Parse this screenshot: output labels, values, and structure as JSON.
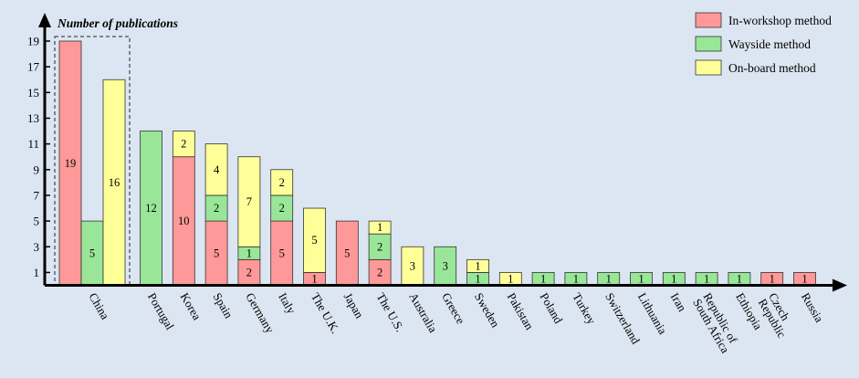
{
  "chart_data": {
    "type": "bar",
    "ylabel": "Number of publications",
    "yticks": [
      1,
      3,
      5,
      7,
      9,
      11,
      13,
      15,
      17,
      19
    ],
    "ylim": [
      0,
      20
    ],
    "grid": false,
    "legend_position": "top-right",
    "colors": {
      "background": "#dce6f2",
      "In-workshop method": "#ff9999",
      "Wayside method": "#99e699",
      "On-board method": "#ffff99"
    },
    "series": [
      {
        "name": "In-workshop method"
      },
      {
        "name": "Wayside method"
      },
      {
        "name": "On-board method"
      }
    ],
    "groups": [
      {
        "category": "China",
        "layout": "grouped",
        "highlight": true,
        "bars": [
          {
            "series": "In-workshop method",
            "value": 19
          },
          {
            "series": "Wayside method",
            "value": 5
          },
          {
            "series": "On-board method",
            "value": 16
          }
        ]
      },
      {
        "category": "Portugal",
        "layout": "stacked",
        "segments": [
          {
            "series": "Wayside method",
            "value": 12
          }
        ]
      },
      {
        "category": "Korea",
        "layout": "stacked",
        "segments": [
          {
            "series": "In-workshop method",
            "value": 10
          },
          {
            "series": "On-board method",
            "value": 2
          }
        ]
      },
      {
        "category": "Spain",
        "layout": "stacked",
        "segments": [
          {
            "series": "In-workshop method",
            "value": 5
          },
          {
            "series": "Wayside method",
            "value": 2
          },
          {
            "series": "On-board method",
            "value": 4
          }
        ]
      },
      {
        "category": "Germany",
        "layout": "stacked",
        "segments": [
          {
            "series": "In-workshop method",
            "value": 2
          },
          {
            "series": "Wayside method",
            "value": 1
          },
          {
            "series": "On-board method",
            "value": 7
          }
        ]
      },
      {
        "category": "Italy",
        "layout": "stacked",
        "segments": [
          {
            "series": "In-workshop method",
            "value": 5
          },
          {
            "series": "Wayside method",
            "value": 2
          },
          {
            "series": "On-board method",
            "value": 2
          }
        ]
      },
      {
        "category": "The U.K.",
        "layout": "stacked",
        "segments": [
          {
            "series": "In-workshop method",
            "value": 1
          },
          {
            "series": "On-board method",
            "value": 5
          }
        ]
      },
      {
        "category": "Japan",
        "layout": "stacked",
        "segments": [
          {
            "series": "In-workshop method",
            "value": 5
          }
        ]
      },
      {
        "category": "The U.S.",
        "layout": "stacked",
        "segments": [
          {
            "series": "In-workshop method",
            "value": 2
          },
          {
            "series": "Wayside method",
            "value": 2
          },
          {
            "series": "On-board method",
            "value": 1
          }
        ]
      },
      {
        "category": "Australia",
        "layout": "stacked",
        "segments": [
          {
            "series": "On-board method",
            "value": 3
          }
        ]
      },
      {
        "category": "Greece",
        "layout": "stacked",
        "segments": [
          {
            "series": "Wayside method",
            "value": 3
          }
        ]
      },
      {
        "category": "Sweden",
        "layout": "stacked",
        "segments": [
          {
            "series": "Wayside method",
            "value": 1
          },
          {
            "series": "On-board method",
            "value": 1
          }
        ]
      },
      {
        "category": "Pakistan",
        "layout": "stacked",
        "segments": [
          {
            "series": "On-board method",
            "value": 1
          }
        ]
      },
      {
        "category": "Poland",
        "layout": "stacked",
        "segments": [
          {
            "series": "Wayside method",
            "value": 1
          }
        ]
      },
      {
        "category": "Turkey",
        "layout": "stacked",
        "segments": [
          {
            "series": "Wayside method",
            "value": 1
          }
        ]
      },
      {
        "category": "Switzerland",
        "layout": "stacked",
        "segments": [
          {
            "series": "Wayside method",
            "value": 1
          }
        ]
      },
      {
        "category": "Lithuania",
        "layout": "stacked",
        "segments": [
          {
            "series": "Wayside method",
            "value": 1
          }
        ]
      },
      {
        "category": "Iran",
        "layout": "stacked",
        "segments": [
          {
            "series": "Wayside method",
            "value": 1
          }
        ]
      },
      {
        "category": "Republic of South Africa",
        "layout": "stacked",
        "segments": [
          {
            "series": "Wayside method",
            "value": 1
          }
        ]
      },
      {
        "category": "Ethiopia",
        "layout": "stacked",
        "segments": [
          {
            "series": "Wayside method",
            "value": 1
          }
        ]
      },
      {
        "category": "Czech Republic",
        "layout": "stacked",
        "segments": [
          {
            "series": "In-workshop method",
            "value": 1
          }
        ]
      },
      {
        "category": "Russia",
        "layout": "stacked",
        "segments": [
          {
            "series": "In-workshop method",
            "value": 1
          }
        ]
      }
    ]
  }
}
